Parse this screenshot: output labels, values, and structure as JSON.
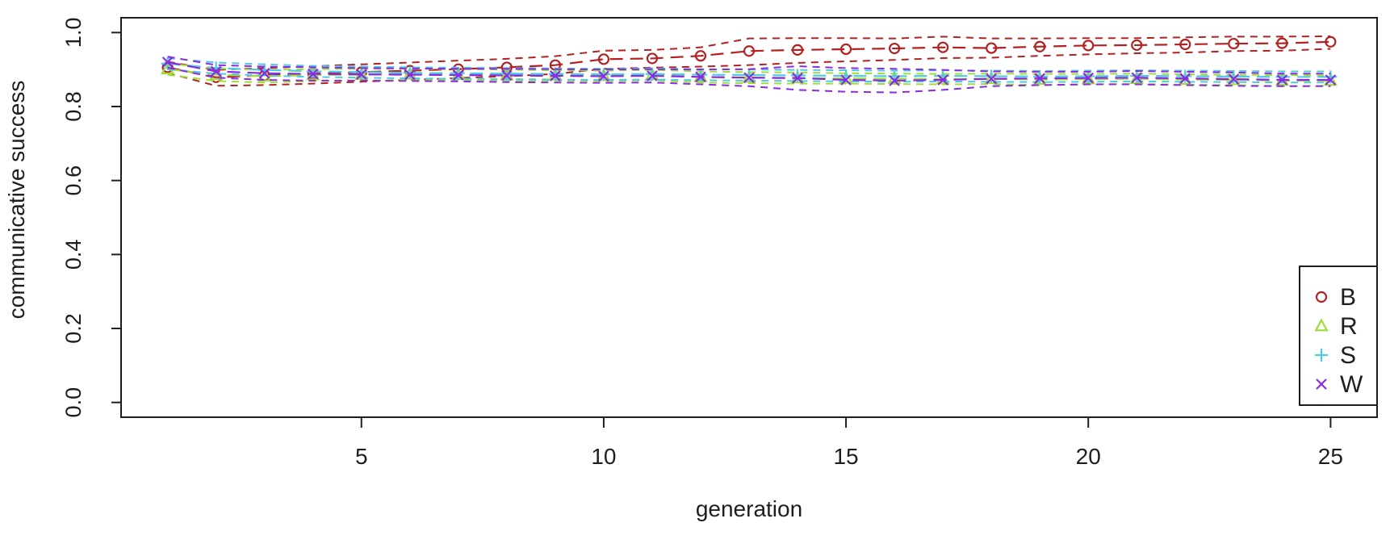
{
  "chart_data": {
    "type": "line",
    "title": "",
    "xlabel": "generation",
    "ylabel": "communicative success",
    "xlim": [
      1,
      25
    ],
    "ylim": [
      0.0,
      1.0
    ],
    "x_ticks": [
      5,
      10,
      15,
      20,
      25
    ],
    "y_ticks": [
      "0.0",
      "0.2",
      "0.4",
      "0.6",
      "0.8",
      "1.0"
    ],
    "grid": false,
    "legend_position": "bottom-right",
    "line_style": "dashed",
    "band_style": "dashed confidence bands (upper/lower) per series",
    "x": [
      1,
      2,
      3,
      4,
      5,
      6,
      7,
      8,
      9,
      10,
      11,
      12,
      13,
      14,
      15,
      16,
      17,
      18,
      19,
      20,
      21,
      22,
      23,
      24,
      25
    ],
    "series": [
      {
        "name": "B",
        "marker": "circle",
        "color": "#b22222",
        "values": [
          0.906,
          0.879,
          0.884,
          0.889,
          0.893,
          0.897,
          0.901,
          0.906,
          0.912,
          0.928,
          0.93,
          0.937,
          0.95,
          0.953,
          0.955,
          0.957,
          0.96,
          0.958,
          0.962,
          0.965,
          0.966,
          0.968,
          0.97,
          0.971,
          0.975
        ],
        "upper": [
          0.921,
          0.899,
          0.904,
          0.909,
          0.914,
          0.919,
          0.924,
          0.929,
          0.936,
          0.951,
          0.953,
          0.96,
          0.984,
          0.985,
          0.985,
          0.984,
          0.989,
          0.984,
          0.984,
          0.985,
          0.985,
          0.987,
          0.989,
          0.989,
          0.99
        ],
        "lower": [
          0.891,
          0.856,
          0.858,
          0.862,
          0.867,
          0.872,
          0.877,
          0.882,
          0.888,
          0.902,
          0.905,
          0.908,
          0.912,
          0.918,
          0.922,
          0.926,
          0.931,
          0.932,
          0.937,
          0.941,
          0.944,
          0.946,
          0.95,
          0.951,
          0.956
        ]
      },
      {
        "name": "R",
        "marker": "triangle",
        "color": "#9fdd3a",
        "values": [
          0.901,
          0.886,
          0.882,
          0.885,
          0.886,
          0.887,
          0.886,
          0.885,
          0.884,
          0.883,
          0.885,
          0.88,
          0.878,
          0.877,
          0.876,
          0.875,
          0.874,
          0.875,
          0.873,
          0.874,
          0.875,
          0.873,
          0.872,
          0.87,
          0.87
        ],
        "upper": [
          0.916,
          0.903,
          0.899,
          0.901,
          0.902,
          0.902,
          0.901,
          0.9,
          0.898,
          0.897,
          0.899,
          0.895,
          0.893,
          0.892,
          0.89,
          0.889,
          0.888,
          0.889,
          0.888,
          0.888,
          0.889,
          0.887,
          0.886,
          0.885,
          0.884
        ],
        "lower": [
          0.886,
          0.869,
          0.865,
          0.869,
          0.87,
          0.872,
          0.871,
          0.87,
          0.87,
          0.869,
          0.871,
          0.865,
          0.863,
          0.862,
          0.862,
          0.861,
          0.86,
          0.861,
          0.858,
          0.86,
          0.861,
          0.859,
          0.858,
          0.855,
          0.856
        ]
      },
      {
        "name": "S",
        "marker": "plus",
        "color": "#4fc9e4",
        "values": [
          0.916,
          0.904,
          0.899,
          0.895,
          0.893,
          0.891,
          0.89,
          0.889,
          0.888,
          0.887,
          0.888,
          0.886,
          0.885,
          0.884,
          0.883,
          0.882,
          0.883,
          0.882,
          0.881,
          0.882,
          0.883,
          0.882,
          0.881,
          0.88,
          0.88
        ],
        "upper": [
          0.931,
          0.919,
          0.914,
          0.91,
          0.908,
          0.906,
          0.905,
          0.904,
          0.903,
          0.902,
          0.903,
          0.901,
          0.9,
          0.899,
          0.898,
          0.897,
          0.898,
          0.897,
          0.896,
          0.897,
          0.898,
          0.897,
          0.896,
          0.895,
          0.895
        ],
        "lower": [
          0.901,
          0.889,
          0.884,
          0.88,
          0.878,
          0.876,
          0.875,
          0.874,
          0.873,
          0.872,
          0.873,
          0.871,
          0.87,
          0.869,
          0.868,
          0.867,
          0.868,
          0.867,
          0.866,
          0.867,
          0.868,
          0.867,
          0.866,
          0.865,
          0.865
        ]
      },
      {
        "name": "W",
        "marker": "x",
        "color": "#8a2be2",
        "values": [
          0.92,
          0.895,
          0.89,
          0.888,
          0.887,
          0.886,
          0.885,
          0.884,
          0.883,
          0.882,
          0.883,
          0.88,
          0.878,
          0.877,
          0.872,
          0.87,
          0.872,
          0.875,
          0.876,
          0.877,
          0.878,
          0.876,
          0.874,
          0.872,
          0.872
        ],
        "upper": [
          0.935,
          0.912,
          0.908,
          0.906,
          0.904,
          0.903,
          0.902,
          0.902,
          0.901,
          0.9,
          0.901,
          0.9,
          0.901,
          0.909,
          0.904,
          0.902,
          0.899,
          0.895,
          0.894,
          0.894,
          0.896,
          0.894,
          0.892,
          0.889,
          0.889
        ],
        "lower": [
          0.905,
          0.878,
          0.872,
          0.87,
          0.87,
          0.869,
          0.868,
          0.866,
          0.865,
          0.864,
          0.865,
          0.86,
          0.855,
          0.845,
          0.84,
          0.838,
          0.845,
          0.855,
          0.858,
          0.86,
          0.86,
          0.858,
          0.856,
          0.855,
          0.855
        ]
      }
    ],
    "legend": {
      "items": [
        {
          "label": "B",
          "marker": "circle",
          "color": "#b22222"
        },
        {
          "label": "R",
          "marker": "triangle",
          "color": "#9fdd3a"
        },
        {
          "label": "S",
          "marker": "plus",
          "color": "#4fc9e4"
        },
        {
          "label": "W",
          "marker": "x",
          "color": "#8a2be2"
        }
      ]
    },
    "axis_color": "#1e1e1e",
    "background_color": "#ffffff"
  }
}
